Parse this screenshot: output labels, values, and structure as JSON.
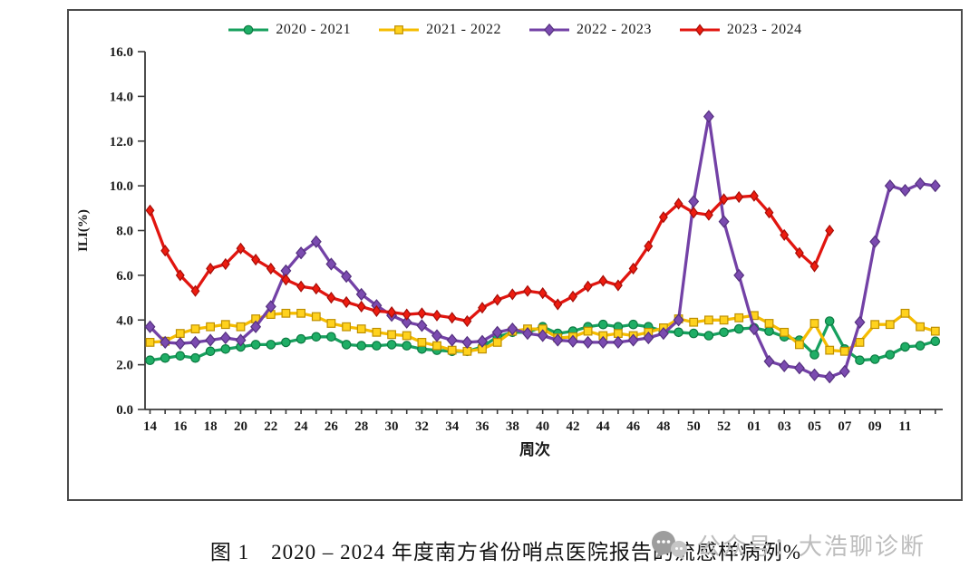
{
  "figure": {
    "caption": "图 1　2020 – 2024 年度南方省份哨点医院报告的流感样病例%"
  },
  "watermark": {
    "icon": "wechat-icon",
    "text": "公众号：大浩聊诊断"
  },
  "chart_data": {
    "type": "line",
    "title": "",
    "xlabel": "周次",
    "ylabel": "ILI(%)",
    "ylim": [
      0,
      16
    ],
    "ytick_step": 2,
    "grid": false,
    "legend_position": "top-center",
    "categories": [
      "14",
      "15",
      "16",
      "17",
      "18",
      "19",
      "20",
      "21",
      "22",
      "23",
      "24",
      "25",
      "26",
      "27",
      "28",
      "29",
      "30",
      "31",
      "32",
      "33",
      "34",
      "35",
      "36",
      "37",
      "38",
      "39",
      "40",
      "41",
      "42",
      "43",
      "44",
      "45",
      "46",
      "47",
      "48",
      "49",
      "50",
      "51",
      "52",
      "53",
      "01",
      "02",
      "03",
      "04",
      "05",
      "06",
      "07",
      "08",
      "09",
      "10",
      "11",
      "12",
      "13"
    ],
    "x_tick_labels": [
      "14",
      "16",
      "18",
      "20",
      "22",
      "24",
      "26",
      "28",
      "30",
      "32",
      "34",
      "36",
      "38",
      "40",
      "42",
      "44",
      "46",
      "48",
      "50",
      "52",
      "01",
      "03",
      "05",
      "07",
      "09",
      "11"
    ],
    "series": [
      {
        "name": "2020 - 2021",
        "marker": "circle",
        "color": "#17A05E",
        "marker_fill": "#1FAE66",
        "marker_stroke": "#0B7A41",
        "values": [
          2.2,
          2.3,
          2.4,
          2.3,
          2.6,
          2.7,
          2.8,
          2.9,
          2.9,
          3.0,
          3.15,
          3.25,
          3.25,
          2.9,
          2.85,
          2.85,
          2.9,
          2.85,
          2.7,
          2.65,
          2.6,
          2.6,
          2.8,
          3.25,
          3.45,
          3.45,
          3.7,
          3.4,
          3.5,
          3.7,
          3.8,
          3.7,
          3.8,
          3.7,
          3.5,
          3.45,
          3.4,
          3.3,
          3.45,
          3.6,
          3.65,
          3.5,
          3.25,
          3.1,
          2.45,
          3.95,
          2.7,
          2.2,
          2.25,
          2.45,
          2.8,
          2.85,
          3.05
        ]
      },
      {
        "name": "2021 - 2022",
        "marker": "square",
        "color": "#F5BC00",
        "marker_fill": "#FFD21E",
        "marker_stroke": "#BE8F00",
        "values": [
          3.0,
          3.05,
          3.4,
          3.6,
          3.7,
          3.8,
          3.7,
          4.05,
          4.25,
          4.3,
          4.3,
          4.15,
          3.85,
          3.7,
          3.6,
          3.45,
          3.35,
          3.3,
          3.0,
          2.85,
          2.65,
          2.6,
          2.7,
          3.0,
          3.5,
          3.6,
          3.6,
          3.2,
          3.25,
          3.5,
          3.3,
          3.4,
          3.3,
          3.45,
          3.65,
          4.05,
          3.9,
          4.0,
          4.0,
          4.1,
          4.2,
          3.85,
          3.45,
          2.9,
          3.85,
          2.65,
          2.6,
          3.0,
          3.8,
          3.8,
          4.3,
          3.7,
          3.5
        ]
      },
      {
        "name": "2022 - 2023",
        "marker": "diamond",
        "color": "#7341A6",
        "marker_fill": "#7B4BB0",
        "marker_stroke": "#54307E",
        "values": [
          3.7,
          3.0,
          2.95,
          3.0,
          3.1,
          3.2,
          3.1,
          3.7,
          4.6,
          6.2,
          7.0,
          7.5,
          6.5,
          5.95,
          5.15,
          4.65,
          4.2,
          3.9,
          3.75,
          3.3,
          3.1,
          3.0,
          3.05,
          3.45,
          3.6,
          3.4,
          3.3,
          3.1,
          3.05,
          3.0,
          3.0,
          3.0,
          3.1,
          3.2,
          3.4,
          4.0,
          9.3,
          13.1,
          8.4,
          6.0,
          3.6,
          2.15,
          1.95,
          1.85,
          1.55,
          1.45,
          1.7,
          3.9,
          7.5,
          10.0,
          9.8,
          10.1,
          10.0
        ]
      },
      {
        "name": "2023 - 2024",
        "marker": "thin-diamond",
        "color": "#E1150F",
        "marker_fill": "#ED1C0F",
        "marker_stroke": "#A50D08",
        "values": [
          8.9,
          7.1,
          6.0,
          5.3,
          6.3,
          6.5,
          7.2,
          6.7,
          6.3,
          5.8,
          5.5,
          5.4,
          5.0,
          4.8,
          4.6,
          4.4,
          4.35,
          4.25,
          4.3,
          4.2,
          4.1,
          3.95,
          4.55,
          4.9,
          5.15,
          5.3,
          5.2,
          4.7,
          5.05,
          5.5,
          5.75,
          5.55,
          6.3,
          7.3,
          8.6,
          9.2,
          8.8,
          8.7,
          9.4,
          9.5,
          9.55,
          8.8,
          7.8,
          7.0,
          6.4,
          8.0,
          null,
          null,
          null,
          null,
          null,
          null,
          null
        ]
      }
    ]
  }
}
